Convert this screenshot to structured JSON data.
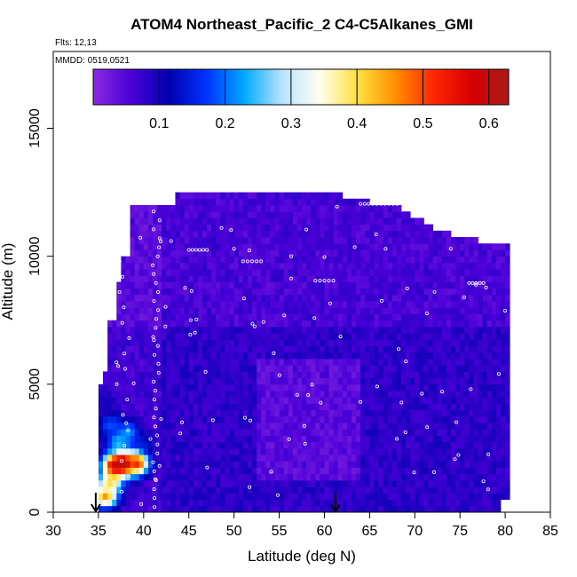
{
  "chart_data": {
    "type": "heatmap",
    "title": "ATOM4 Northeast_Pacific_2 C4-C5Alkanes_GMI",
    "subtitle_flights": "Flts: 12,13",
    "subtitle_dates": "MMDD: 0519,0521",
    "xlabel": "Latitude (deg N)",
    "ylabel": "Altitude (m)",
    "xlim": [
      30,
      85
    ],
    "ylim": [
      0,
      18000
    ],
    "x_ticks": [
      "30",
      "35",
      "40",
      "45",
      "50",
      "55",
      "60",
      "65",
      "70",
      "75",
      "80",
      "85"
    ],
    "y_ticks": [
      "0",
      "5000",
      "10000",
      "15000"
    ],
    "colorbar": {
      "range": [
        0.0,
        0.63
      ],
      "ticks": [
        "0.1",
        "0.2",
        "0.3",
        "0.4",
        "0.5",
        "0.6"
      ],
      "colors": [
        "#8a2be2",
        "#4b00d8",
        "#0000b0",
        "#0033ff",
        "#00aaff",
        "#b8e4ff",
        "#fffff0",
        "#ffe040",
        "#ff9000",
        "#ff2800",
        "#d80000",
        "#aa1a1a"
      ]
    },
    "grid": false,
    "arrow_markers_latitude": [
      34.7,
      61.2
    ],
    "data_region": {
      "lat_min": 35.0,
      "lat_max": 82.0,
      "alt_max": 12500
    },
    "high_concentration_cells": [
      {
        "lat": 35.5,
        "alt": 500,
        "value": 0.45
      },
      {
        "lat": 36.0,
        "alt": 1000,
        "value": 0.38
      },
      {
        "lat": 36.5,
        "alt": 1700,
        "value": 0.55
      },
      {
        "lat": 37.5,
        "alt": 1800,
        "value": 0.62
      },
      {
        "lat": 39.0,
        "alt": 1800,
        "value": 0.52
      },
      {
        "lat": 37.0,
        "alt": 2600,
        "value": 0.25
      },
      {
        "lat": 36.0,
        "alt": 3300,
        "value": 0.18
      },
      {
        "lat": 38.0,
        "alt": 3000,
        "value": 0.22
      },
      {
        "lat": 39.5,
        "alt": 2500,
        "value": 0.15
      },
      {
        "lat": 35.5,
        "alt": 4200,
        "value": 0.1
      }
    ]
  }
}
